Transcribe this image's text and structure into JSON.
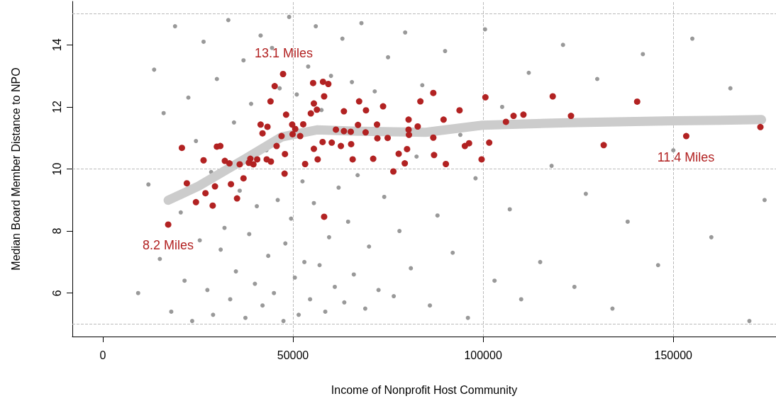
{
  "chart_data": {
    "type": "scatter",
    "xlabel": "Income of Nonprofit Host Community",
    "ylabel": "Median Board Member Distance to NPO",
    "xlim": [
      -8000,
      177000
    ],
    "ylim": [
      4.6,
      15.4
    ],
    "xticks": [
      0,
      50000,
      100000,
      150000
    ],
    "yticks": [
      6,
      8,
      10,
      12,
      14
    ],
    "grid": false,
    "series": [
      {
        "color": "#999999",
        "x": [
          9300,
          12000,
          13500,
          15000,
          16000,
          18000,
          19000,
          20500,
          21500,
          22500,
          23500,
          24500,
          25500,
          26500,
          27500,
          28500,
          29000,
          30000,
          31000,
          32000,
          33000,
          33500,
          34500,
          35000,
          36000,
          37000,
          37500,
          38500,
          39000,
          40000,
          40500,
          41500,
          42000,
          43000,
          43500,
          44500,
          45000,
          46000,
          46500,
          47500,
          48000,
          49000,
          49500,
          50500,
          51000,
          51500,
          52500,
          53000,
          54000,
          54500,
          55500,
          56000,
          57000,
          57500,
          58500,
          59500,
          60000,
          61000,
          62000,
          63000,
          63500,
          64500,
          65500,
          66000,
          67000,
          68000,
          69000,
          70000,
          71500,
          72500,
          74000,
          75000,
          76500,
          78000,
          79500,
          81000,
          82500,
          84000,
          86000,
          88000,
          90000,
          92000,
          94000,
          96000,
          98000,
          100500,
          103000,
          105000,
          107000,
          110000,
          112000,
          115000,
          118000,
          121000,
          124000,
          127000,
          130000,
          134000,
          138000,
          142000,
          146000,
          150000,
          155000,
          160000,
          165000,
          170000,
          174000
        ],
        "values": [
          6.0,
          9.5,
          13.2,
          7.1,
          11.8,
          5.4,
          14.6,
          8.6,
          6.4,
          12.3,
          5.1,
          10.9,
          7.7,
          14.1,
          6.1,
          9.9,
          5.3,
          12.9,
          7.4,
          8.1,
          14.8,
          5.8,
          11.5,
          6.7,
          9.3,
          13.5,
          5.2,
          7.9,
          12.1,
          6.3,
          8.8,
          14.3,
          5.6,
          10.6,
          7.2,
          13.9,
          6.0,
          9.0,
          12.6,
          5.1,
          7.6,
          14.9,
          8.4,
          6.5,
          12.4,
          5.3,
          9.6,
          7.0,
          13.3,
          5.8,
          8.9,
          14.6,
          6.9,
          11.9,
          5.4,
          7.8,
          13.0,
          6.2,
          9.4,
          14.2,
          5.7,
          8.3,
          12.8,
          6.6,
          9.8,
          14.7,
          5.5,
          7.5,
          12.5,
          6.1,
          9.1,
          13.6,
          5.9,
          8.0,
          14.4,
          6.8,
          10.4,
          12.7,
          5.6,
          8.5,
          13.8,
          7.3,
          11.1,
          5.2,
          9.7,
          14.5,
          6.4,
          12.0,
          8.7,
          5.8,
          13.1,
          7.0,
          10.1,
          14.0,
          6.2,
          9.2,
          12.9,
          5.5,
          8.3,
          13.7,
          6.9,
          10.6,
          14.2,
          7.8,
          12.6,
          5.1,
          9.0
        ]
      },
      {
        "color": "#b22222",
        "x": [
          47400,
          45200,
          44100,
          48200,
          41500,
          43300,
          42000,
          47000,
          49800,
          50600,
          49900,
          51900,
          52700,
          55300,
          57900,
          59300,
          58200,
          55500,
          54700,
          56300,
          63400,
          61300,
          63400,
          65200,
          57800,
          60200,
          62600,
          65300,
          55500,
          56500,
          65700,
          53200,
          47900,
          47800,
          45700,
          40600,
          43100,
          44200,
          38800,
          39600,
          38400,
          36000,
          33300,
          32100,
          30000,
          30900,
          26500,
          20800,
          37000,
          33700,
          29500,
          27000,
          22100,
          24500,
          28900,
          35300,
          58200,
          17200,
          67400,
          69200,
          73700,
          67100,
          69100,
          72100,
          72200,
          74900,
          71100,
          77800,
          80000,
          79400,
          76400,
          80400,
          80400,
          80500,
          82800,
          83500,
          86900,
          86900,
          87100,
          90200,
          89600,
          93800,
          95200,
          96300,
          99600,
          100600,
          101600,
          106000,
          108000,
          110600,
          118300,
          123100,
          131700,
          140500,
          153400,
          172900
        ],
        "values": [
          13.06,
          12.67,
          12.18,
          11.75,
          11.43,
          11.36,
          11.15,
          11.06,
          11.43,
          11.29,
          11.12,
          11.06,
          11.44,
          12.77,
          12.81,
          12.74,
          12.34,
          12.11,
          11.79,
          11.91,
          11.86,
          11.27,
          11.22,
          11.2,
          10.87,
          10.85,
          10.74,
          10.8,
          10.65,
          10.31,
          10.31,
          10.16,
          10.48,
          9.85,
          10.74,
          10.31,
          10.31,
          10.24,
          10.33,
          10.15,
          10.2,
          10.15,
          10.18,
          10.26,
          10.72,
          10.74,
          10.28,
          10.68,
          9.7,
          9.51,
          9.44,
          9.22,
          9.54,
          8.93,
          8.82,
          9.05,
          8.46,
          8.21,
          12.18,
          11.89,
          12.02,
          11.42,
          11.18,
          11.43,
          10.99,
          11.0,
          10.33,
          10.49,
          10.64,
          10.18,
          9.92,
          11.59,
          11.27,
          11.1,
          11.37,
          12.18,
          12.45,
          11.01,
          10.45,
          10.16,
          11.59,
          11.89,
          10.74,
          10.83,
          10.31,
          12.31,
          10.85,
          11.52,
          11.71,
          11.75,
          12.34,
          11.71,
          10.77,
          12.17,
          11.06,
          11.35
        ]
      },
      {
        "type": "line",
        "color": "#cccccc",
        "x": [
          17200,
          25200,
          37600,
          47000,
          51300,
          56300,
          65600,
          84900,
          99800,
          122200,
          150200,
          173200
        ],
        "values": [
          8.99,
          9.45,
          10.34,
          11.03,
          11.14,
          11.26,
          11.22,
          11.18,
          11.41,
          11.49,
          11.55,
          11.59
        ]
      }
    ],
    "ref_lines": [
      {
        "axis": "x",
        "value": 50000,
        "color": "#bbbbbb",
        "line_style": "dashed"
      },
      {
        "axis": "x",
        "value": 100000,
        "color": "#bbbbbb",
        "line_style": "dashed"
      },
      {
        "axis": "x",
        "value": 150000,
        "color": "#bbbbbb",
        "line_style": "dashed"
      },
      {
        "axis": "y",
        "value": 5,
        "color": "#bbbbbb",
        "line_style": "dashed"
      },
      {
        "axis": "y",
        "value": 10,
        "color": "#bbbbbb",
        "line_style": "dashed"
      },
      {
        "axis": "y",
        "value": 15,
        "color": "#bbbbbb",
        "line_style": "dashed"
      }
    ],
    "annotations": [
      "13.1 Miles",
      "8.2 Miles",
      "11.4 Miles"
    ]
  }
}
